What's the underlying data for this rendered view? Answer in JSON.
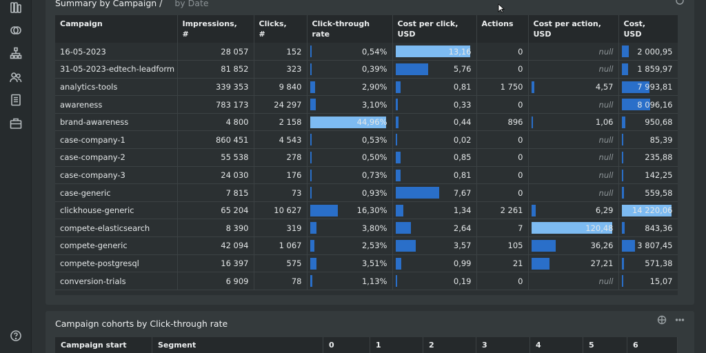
{
  "sidebar": {
    "icons": [
      "dashboards-icon",
      "segments-icon",
      "hierarchy-icon",
      "users-icon",
      "reports-icon",
      "briefcase-icon",
      "help-icon"
    ]
  },
  "summary": {
    "title": "Summary by Campaign /",
    "alt_view": "by Date",
    "columns": [
      "Campaign",
      "Impressions,\n#",
      "Clicks,\n#",
      "Click-through\nrate",
      "Cost per click,\nUSD",
      "Actions",
      "Cost per action,\nUSD",
      "Cost,\nUSD"
    ],
    "rows": [
      {
        "campaign": "16-05-2023",
        "impressions": "28 057",
        "clicks": "152",
        "ctr": "0,54%",
        "ctr_v": 0.54,
        "cpc": "13,16",
        "cpc_v": 13.16,
        "actions": "0",
        "cpa": "null",
        "cpa_v": 0,
        "cost": "2 000,95",
        "cost_v": 2000.95
      },
      {
        "campaign": "31-05-2023-edtech-leadform",
        "impressions": "81 852",
        "clicks": "323",
        "ctr": "0,39%",
        "ctr_v": 0.39,
        "cpc": "5,76",
        "cpc_v": 5.76,
        "actions": "0",
        "cpa": "null",
        "cpa_v": 0,
        "cost": "1 859,97",
        "cost_v": 1859.97
      },
      {
        "campaign": "analytics-tools",
        "impressions": "339 353",
        "clicks": "9 840",
        "ctr": "2,90%",
        "ctr_v": 2.9,
        "cpc": "0,81",
        "cpc_v": 0.81,
        "actions": "1 750",
        "cpa": "4,57",
        "cpa_v": 4.57,
        "cost": "7 993,81",
        "cost_v": 7993.81
      },
      {
        "campaign": "awareness",
        "impressions": "783 173",
        "clicks": "24 297",
        "ctr": "3,10%",
        "ctr_v": 3.1,
        "cpc": "0,33",
        "cpc_v": 0.33,
        "actions": "0",
        "cpa": "null",
        "cpa_v": 0,
        "cost": "8 096,16",
        "cost_v": 8096.16
      },
      {
        "campaign": "brand-awareness",
        "impressions": "4 800",
        "clicks": "2 158",
        "ctr": "44,96%",
        "ctr_v": 44.96,
        "cpc": "0,44",
        "cpc_v": 0.44,
        "actions": "896",
        "cpa": "1,06",
        "cpa_v": 1.06,
        "cost": "950,68",
        "cost_v": 950.68
      },
      {
        "campaign": "case-company-1",
        "impressions": "860 451",
        "clicks": "4 543",
        "ctr": "0,53%",
        "ctr_v": 0.53,
        "cpc": "0,02",
        "cpc_v": 0.02,
        "actions": "0",
        "cpa": "null",
        "cpa_v": 0,
        "cost": "85,39",
        "cost_v": 85.39
      },
      {
        "campaign": "case-company-2",
        "impressions": "55 538",
        "clicks": "278",
        "ctr": "0,50%",
        "ctr_v": 0.5,
        "cpc": "0,85",
        "cpc_v": 0.85,
        "actions": "0",
        "cpa": "null",
        "cpa_v": 0,
        "cost": "235,88",
        "cost_v": 235.88
      },
      {
        "campaign": "case-company-3",
        "impressions": "24 030",
        "clicks": "176",
        "ctr": "0,73%",
        "ctr_v": 0.73,
        "cpc": "0,81",
        "cpc_v": 0.81,
        "actions": "0",
        "cpa": "null",
        "cpa_v": 0,
        "cost": "142,25",
        "cost_v": 142.25
      },
      {
        "campaign": "case-generic",
        "impressions": "7 815",
        "clicks": "73",
        "ctr": "0,93%",
        "ctr_v": 0.93,
        "cpc": "7,67",
        "cpc_v": 7.67,
        "actions": "0",
        "cpa": "null",
        "cpa_v": 0,
        "cost": "559,58",
        "cost_v": 559.58
      },
      {
        "campaign": "clickhouse-generic",
        "impressions": "65 204",
        "clicks": "10 627",
        "ctr": "16,30%",
        "ctr_v": 16.3,
        "cpc": "1,34",
        "cpc_v": 1.34,
        "actions": "2 261",
        "cpa": "6,29",
        "cpa_v": 6.29,
        "cost": "14 220,06",
        "cost_v": 14220.06
      },
      {
        "campaign": "compete-elasticsearch",
        "impressions": "8 390",
        "clicks": "319",
        "ctr": "3,80%",
        "ctr_v": 3.8,
        "cpc": "2,64",
        "cpc_v": 2.64,
        "actions": "7",
        "cpa": "120,48",
        "cpa_v": 120.48,
        "cost": "843,36",
        "cost_v": 843.36
      },
      {
        "campaign": "compete-generic",
        "impressions": "42 094",
        "clicks": "1 067",
        "ctr": "2,53%",
        "ctr_v": 2.53,
        "cpc": "3,57",
        "cpc_v": 3.57,
        "actions": "105",
        "cpa": "36,26",
        "cpa_v": 36.26,
        "cost": "3 807,45",
        "cost_v": 3807.45
      },
      {
        "campaign": "compete-postgresql",
        "impressions": "16 397",
        "clicks": "575",
        "ctr": "3,51%",
        "ctr_v": 3.51,
        "cpc": "0,99",
        "cpc_v": 0.99,
        "actions": "21",
        "cpa": "27,21",
        "cpa_v": 27.21,
        "cost": "571,38",
        "cost_v": 571.38
      },
      {
        "campaign": "conversion-trials",
        "impressions": "6 909",
        "clicks": "78",
        "ctr": "1,13%",
        "ctr_v": 1.13,
        "cpc": "0,19",
        "cpc_v": 0.19,
        "actions": "0",
        "cpa": "null",
        "cpa_v": 0,
        "cost": "15,07",
        "cost_v": 15.07
      }
    ],
    "max": {
      "ctr": 44.96,
      "cpc": 13.16,
      "cpa": 120.48,
      "cost": 14220.06
    },
    "colors": {
      "bar": "#2a6fc9",
      "bar_highlight": "#7dbbf2"
    }
  },
  "cohorts": {
    "title": "Campaign cohorts by Click-through rate",
    "columns": [
      "Campaign start",
      "Segment",
      "0",
      "1",
      "2",
      "3",
      "4",
      "5",
      "6"
    ]
  }
}
